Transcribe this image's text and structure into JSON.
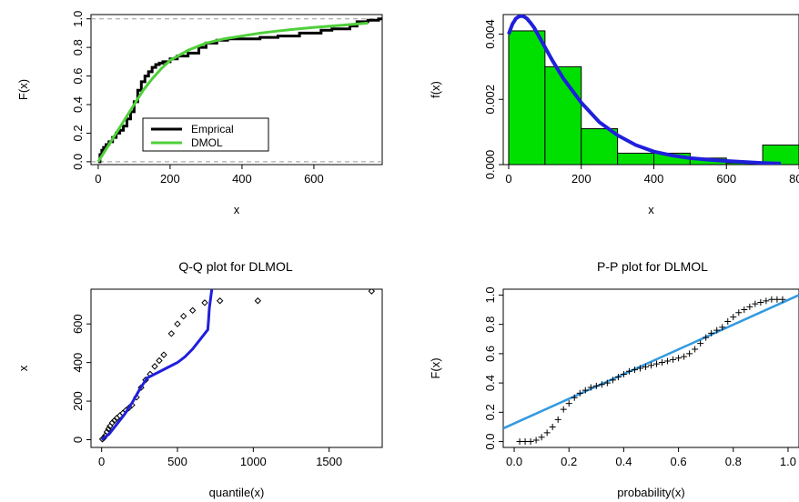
{
  "chart_data": [
    {
      "type": "line",
      "title": "",
      "xlabel": "x",
      "ylabel": "F(x)",
      "xlim": [
        -20,
        790
      ],
      "ylim": [
        -0.02,
        1.03
      ],
      "xticks": [
        0,
        200,
        400,
        600
      ],
      "yticks": [
        0.0,
        0.2,
        0.4,
        0.6,
        0.8,
        1.0
      ],
      "ytick_labels": [
        "0.0",
        "0.2",
        "0.4",
        "0.6",
        "0.8",
        "1.0"
      ],
      "reference_lines": [
        0,
        1
      ],
      "legend": {
        "placement": "bottom-center",
        "entries": [
          "Emprical",
          "DMOL"
        ]
      },
      "series": [
        {
          "name": "Emprical",
          "color": "#000000",
          "style": "step",
          "x": [
            0,
            5,
            10,
            15,
            22,
            30,
            40,
            50,
            60,
            70,
            80,
            90,
            100,
            110,
            120,
            130,
            140,
            150,
            160,
            170,
            180,
            200,
            220,
            250,
            280,
            300,
            330,
            360,
            400,
            450,
            500,
            560,
            620,
            650,
            700,
            720,
            750,
            780
          ],
          "y": [
            0.0,
            0.05,
            0.08,
            0.1,
            0.12,
            0.14,
            0.17,
            0.2,
            0.22,
            0.25,
            0.3,
            0.35,
            0.42,
            0.5,
            0.56,
            0.6,
            0.63,
            0.66,
            0.68,
            0.69,
            0.7,
            0.72,
            0.74,
            0.76,
            0.8,
            0.83,
            0.85,
            0.86,
            0.86,
            0.87,
            0.88,
            0.9,
            0.92,
            0.93,
            0.95,
            0.98,
            0.99,
            1.0
          ]
        },
        {
          "name": "DMOL",
          "color": "#4fcf3a",
          "style": "line",
          "x": [
            0,
            20,
            40,
            60,
            80,
            100,
            125,
            150,
            175,
            200,
            250,
            300,
            350,
            400,
            450,
            500,
            550,
            600,
            650,
            700,
            750
          ],
          "y": [
            0.0,
            0.08,
            0.16,
            0.24,
            0.32,
            0.4,
            0.5,
            0.58,
            0.65,
            0.71,
            0.78,
            0.83,
            0.86,
            0.88,
            0.9,
            0.915,
            0.928,
            0.94,
            0.95,
            0.96,
            0.97
          ]
        }
      ]
    },
    {
      "type": "bar",
      "title": "",
      "xlabel": "x",
      "ylabel": "f(x)",
      "xlim": [
        -15,
        800
      ],
      "ylim": [
        0,
        0.0046
      ],
      "xticks": [
        0,
        200,
        400,
        600,
        800
      ],
      "yticks": [
        0.0,
        0.002,
        0.004
      ],
      "ytick_labels": [
        "0.000",
        "0.002",
        "0.004"
      ],
      "bars": {
        "color": "#00e000",
        "edges": [
          0,
          100,
          200,
          300,
          400,
          500,
          600,
          700,
          800
        ],
        "values": [
          0.0041,
          0.003,
          0.0011,
          0.00035,
          0.00035,
          0.0002,
          5e-05,
          0.0006
        ]
      },
      "series": [
        {
          "name": "",
          "color": "#1f1fdc",
          "x": [
            0,
            10,
            20,
            30,
            40,
            50,
            60,
            70,
            80,
            100,
            120,
            150,
            180,
            200,
            250,
            300,
            350,
            400,
            450,
            500,
            550,
            600,
            650,
            700,
            750
          ],
          "y": [
            0.004,
            0.0043,
            0.00448,
            0.00455,
            0.00455,
            0.00448,
            0.00435,
            0.0042,
            0.004,
            0.0036,
            0.0032,
            0.00265,
            0.0022,
            0.0019,
            0.0013,
            0.0009,
            0.0006,
            0.0004,
            0.00028,
            0.0002,
            0.00015,
            0.00011,
            8e-05,
            5e-05,
            3e-05
          ]
        }
      ]
    },
    {
      "type": "scatter",
      "title": "Q-Q plot for  DLMOL",
      "xlabel": "quantile(x)",
      "ylabel": "x",
      "xlim": [
        -70,
        1850
      ],
      "ylim": [
        -40,
        780
      ],
      "xticks": [
        0,
        500,
        1000,
        1500
      ],
      "yticks": [
        0,
        200,
        400,
        600
      ],
      "points": {
        "marker": "diamond",
        "color": "#000000",
        "x": [
          5,
          15,
          25,
          35,
          45,
          55,
          70,
          85,
          100,
          120,
          140,
          160,
          180,
          200,
          230,
          260,
          290,
          320,
          350,
          380,
          410,
          460,
          500,
          540,
          600,
          680,
          780,
          1030,
          1780
        ],
        "y": [
          3,
          10,
          22,
          40,
          55,
          70,
          88,
          100,
          112,
          125,
          138,
          152,
          165,
          180,
          220,
          270,
          310,
          340,
          380,
          410,
          440,
          550,
          600,
          640,
          670,
          710,
          720,
          720,
          770
        ]
      },
      "series": [
        {
          "name": "",
          "color": "#1f1fdc",
          "x": [
            0,
            50,
            100,
            150,
            200,
            250,
            300,
            350,
            400,
            450,
            500,
            550,
            600,
            650,
            700,
            705,
            710,
            720,
            730
          ],
          "y": [
            0,
            30,
            80,
            130,
            190,
            260,
            320,
            340,
            360,
            380,
            400,
            430,
            470,
            520,
            570,
            620,
            680,
            740,
            800
          ]
        }
      ]
    },
    {
      "type": "scatter",
      "title": "P-P plot for  DLMOL",
      "xlabel": "probability(x)",
      "ylabel": "F(x)",
      "xlim": [
        -0.04,
        1.04
      ],
      "ylim": [
        -0.04,
        1.04
      ],
      "xticks": [
        0.0,
        0.2,
        0.4,
        0.6,
        0.8,
        1.0
      ],
      "yticks": [
        0.0,
        0.2,
        0.4,
        0.6,
        0.8,
        1.0
      ],
      "tick_labels": [
        "0.0",
        "0.2",
        "0.4",
        "0.6",
        "0.8",
        "1.0"
      ],
      "points": {
        "marker": "plus",
        "color": "#000000",
        "x": [
          0.02,
          0.04,
          0.06,
          0.08,
          0.1,
          0.12,
          0.14,
          0.16,
          0.18,
          0.2,
          0.22,
          0.24,
          0.26,
          0.28,
          0.3,
          0.32,
          0.34,
          0.36,
          0.38,
          0.4,
          0.42,
          0.44,
          0.46,
          0.48,
          0.5,
          0.52,
          0.54,
          0.56,
          0.58,
          0.6,
          0.62,
          0.64,
          0.66,
          0.68,
          0.7,
          0.72,
          0.74,
          0.76,
          0.78,
          0.8,
          0.82,
          0.84,
          0.86,
          0.88,
          0.9,
          0.92,
          0.94,
          0.96,
          0.98
        ],
        "y": [
          0.0,
          0.0,
          0.0,
          0.01,
          0.03,
          0.06,
          0.1,
          0.15,
          0.22,
          0.26,
          0.3,
          0.33,
          0.35,
          0.37,
          0.38,
          0.39,
          0.4,
          0.42,
          0.44,
          0.46,
          0.48,
          0.49,
          0.5,
          0.51,
          0.52,
          0.53,
          0.54,
          0.55,
          0.56,
          0.57,
          0.58,
          0.6,
          0.63,
          0.67,
          0.71,
          0.74,
          0.76,
          0.78,
          0.82,
          0.85,
          0.88,
          0.9,
          0.92,
          0.94,
          0.95,
          0.96,
          0.97,
          0.97,
          0.97
        ]
      },
      "series": [
        {
          "name": "",
          "color": "#3399e0",
          "x": [
            -0.04,
            1.04
          ],
          "y": [
            0.09,
            1.0
          ]
        }
      ]
    }
  ]
}
